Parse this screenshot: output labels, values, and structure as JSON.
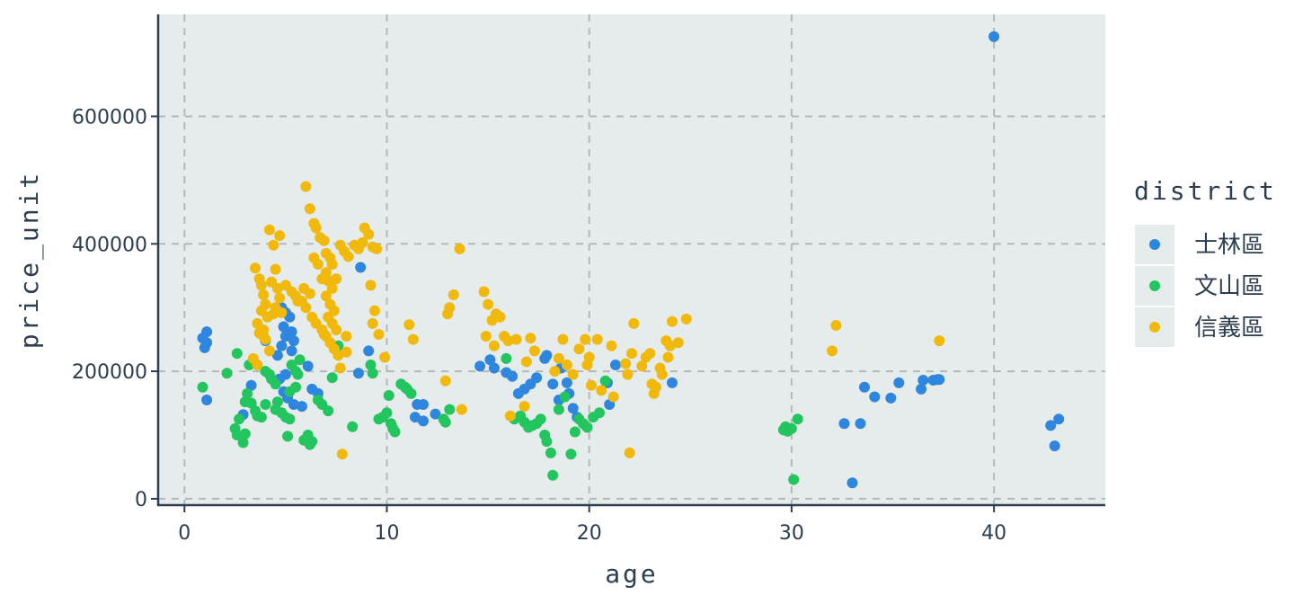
{
  "chart_data": {
    "type": "scatter",
    "xlabel": "age",
    "ylabel": "price_unit",
    "xlim": [
      -1.3,
      45.5
    ],
    "ylim": [
      -10000,
      760000
    ],
    "x_ticks": [
      0,
      10,
      20,
      30,
      40
    ],
    "y_ticks": [
      0,
      200000,
      400000,
      600000
    ],
    "grid": true,
    "background": "#e6ebeb",
    "legend": {
      "title": "district",
      "position": "right"
    },
    "series": [
      {
        "name": "士林區",
        "color": "#2e86de",
        "points": [
          [
            0.9,
            252000
          ],
          [
            1.1,
            262000
          ],
          [
            1.1,
            245000
          ],
          [
            1.0,
            237000
          ],
          [
            1.1,
            155000
          ],
          [
            2.9,
            132000
          ],
          [
            3.3,
            178000
          ],
          [
            4.0,
            248000
          ],
          [
            4.8,
            300000
          ],
          [
            5.0,
            292000
          ],
          [
            5.2,
            285000
          ],
          [
            4.9,
            270000
          ],
          [
            5.3,
            262000
          ],
          [
            5.0,
            255000
          ],
          [
            5.4,
            248000
          ],
          [
            4.8,
            240000
          ],
          [
            5.3,
            232000
          ],
          [
            4.6,
            225000
          ],
          [
            5.0,
            195000
          ],
          [
            4.7,
            188000
          ],
          [
            4.9,
            168000
          ],
          [
            5.1,
            158000
          ],
          [
            5.4,
            148000
          ],
          [
            5.8,
            145000
          ],
          [
            6.1,
            208000
          ],
          [
            6.3,
            172000
          ],
          [
            6.6,
            165000
          ],
          [
            8.7,
            363000
          ],
          [
            8.6,
            197000
          ],
          [
            9.1,
            232000
          ],
          [
            11.5,
            148000
          ],
          [
            11.8,
            148000
          ],
          [
            11.4,
            128000
          ],
          [
            11.8,
            122000
          ],
          [
            12.4,
            133000
          ],
          [
            14.6,
            208000
          ],
          [
            15.1,
            218000
          ],
          [
            15.3,
            205000
          ],
          [
            15.9,
            198000
          ],
          [
            16.2,
            192000
          ],
          [
            16.5,
            165000
          ],
          [
            16.8,
            172000
          ],
          [
            17.1,
            180000
          ],
          [
            17.4,
            190000
          ],
          [
            17.8,
            220000
          ],
          [
            17.9,
            225000
          ],
          [
            18.2,
            180000
          ],
          [
            18.6,
            205000
          ],
          [
            18.9,
            182000
          ],
          [
            19.0,
            165000
          ],
          [
            18.5,
            155000
          ],
          [
            19.2,
            142000
          ],
          [
            19.4,
            128000
          ],
          [
            20.9,
            182000
          ],
          [
            21.0,
            148000
          ],
          [
            21.3,
            210000
          ],
          [
            24.1,
            182000
          ],
          [
            32.6,
            118000
          ],
          [
            33.0,
            25000
          ],
          [
            33.4,
            118000
          ],
          [
            33.6,
            175000
          ],
          [
            34.1,
            160000
          ],
          [
            34.9,
            158000
          ],
          [
            35.3,
            182000
          ],
          [
            36.4,
            172000
          ],
          [
            36.5,
            186000
          ],
          [
            37.0,
            186000
          ],
          [
            37.2,
            187000
          ],
          [
            37.3,
            187000
          ],
          [
            40.0,
            725000
          ],
          [
            42.8,
            115000
          ],
          [
            43.0,
            83000
          ],
          [
            43.2,
            125000
          ]
        ]
      },
      {
        "name": "文山區",
        "color": "#22c55e",
        "points": [
          [
            0.9,
            175000
          ],
          [
            2.1,
            197000
          ],
          [
            2.6,
            228000
          ],
          [
            2.7,
            125000
          ],
          [
            2.5,
            110000
          ],
          [
            2.6,
            100000
          ],
          [
            2.9,
            88000
          ],
          [
            3.0,
            102000
          ],
          [
            3.2,
            210000
          ],
          [
            3.4,
            215000
          ],
          [
            3.1,
            165000
          ],
          [
            3.0,
            152000
          ],
          [
            3.3,
            150000
          ],
          [
            3.5,
            138000
          ],
          [
            3.6,
            130000
          ],
          [
            3.8,
            128000
          ],
          [
            4.0,
            200000
          ],
          [
            4.2,
            195000
          ],
          [
            4.3,
            188000
          ],
          [
            4.5,
            180000
          ],
          [
            4.0,
            148000
          ],
          [
            4.6,
            152000
          ],
          [
            4.5,
            140000
          ],
          [
            4.8,
            135000
          ],
          [
            5.0,
            128000
          ],
          [
            5.2,
            125000
          ],
          [
            5.3,
            210000
          ],
          [
            5.5,
            200000
          ],
          [
            5.6,
            195000
          ],
          [
            5.5,
            175000
          ],
          [
            5.2,
            168000
          ],
          [
            5.1,
            98000
          ],
          [
            5.7,
            218000
          ],
          [
            5.9,
            92000
          ],
          [
            6.1,
            100000
          ],
          [
            6.2,
            85000
          ],
          [
            6.3,
            90000
          ],
          [
            6.6,
            155000
          ],
          [
            6.8,
            148000
          ],
          [
            7.1,
            138000
          ],
          [
            7.3,
            190000
          ],
          [
            7.6,
            240000
          ],
          [
            8.3,
            113000
          ],
          [
            9.2,
            210000
          ],
          [
            9.3,
            197000
          ],
          [
            9.6,
            125000
          ],
          [
            9.8,
            128000
          ],
          [
            10.0,
            135000
          ],
          [
            10.1,
            162000
          ],
          [
            10.2,
            118000
          ],
          [
            10.3,
            110000
          ],
          [
            10.4,
            105000
          ],
          [
            10.7,
            180000
          ],
          [
            10.9,
            175000
          ],
          [
            11.0,
            172000
          ],
          [
            11.2,
            165000
          ],
          [
            12.8,
            125000
          ],
          [
            12.9,
            120000
          ],
          [
            13.1,
            140000
          ],
          [
            15.9,
            220000
          ],
          [
            16.3,
            125000
          ],
          [
            16.6,
            130000
          ],
          [
            16.8,
            120000
          ],
          [
            17.0,
            112000
          ],
          [
            17.2,
            115000
          ],
          [
            17.4,
            118000
          ],
          [
            17.6,
            125000
          ],
          [
            17.8,
            100000
          ],
          [
            17.9,
            90000
          ],
          [
            18.1,
            72000
          ],
          [
            18.2,
            37000
          ],
          [
            18.5,
            140000
          ],
          [
            18.8,
            160000
          ],
          [
            19.1,
            70000
          ],
          [
            19.3,
            105000
          ],
          [
            19.5,
            125000
          ],
          [
            19.7,
            118000
          ],
          [
            19.9,
            112000
          ],
          [
            20.2,
            128000
          ],
          [
            20.5,
            135000
          ],
          [
            20.8,
            185000
          ],
          [
            29.6,
            108000
          ],
          [
            29.7,
            113000
          ],
          [
            29.8,
            106000
          ],
          [
            30.0,
            110000
          ],
          [
            30.1,
            30000
          ],
          [
            30.3,
            125000
          ]
        ]
      },
      {
        "name": "信義區",
        "color": "#f0b90b",
        "points": [
          [
            3.5,
            362000
          ],
          [
            3.7,
            345000
          ],
          [
            3.9,
            320000
          ],
          [
            4.0,
            305000
          ],
          [
            3.8,
            295000
          ],
          [
            4.1,
            285000
          ],
          [
            3.6,
            275000
          ],
          [
            3.9,
            265000
          ],
          [
            4.2,
            422000
          ],
          [
            4.4,
            398000
          ],
          [
            4.5,
            360000
          ],
          [
            4.3,
            340000
          ],
          [
            4.6,
            330000
          ],
          [
            4.7,
            315000
          ],
          [
            4.5,
            300000
          ],
          [
            4.8,
            292000
          ],
          [
            3.7,
            260000
          ],
          [
            3.9,
            255000
          ],
          [
            4.0,
            250000
          ],
          [
            4.2,
            232000
          ],
          [
            3.4,
            220000
          ],
          [
            3.6,
            210000
          ],
          [
            4.7,
            413000
          ],
          [
            5.0,
            335000
          ],
          [
            5.3,
            325000
          ],
          [
            5.5,
            318000
          ],
          [
            5.6,
            310000
          ],
          [
            5.8,
            310000
          ],
          [
            6.0,
            490000
          ],
          [
            6.2,
            455000
          ],
          [
            6.4,
            432000
          ],
          [
            6.5,
            425000
          ],
          [
            6.7,
            410000
          ],
          [
            6.9,
            405000
          ],
          [
            6.4,
            378000
          ],
          [
            6.6,
            368000
          ],
          [
            6.2,
            322000
          ],
          [
            6.0,
            300000
          ],
          [
            6.3,
            285000
          ],
          [
            6.5,
            275000
          ],
          [
            6.8,
            265000
          ],
          [
            6.9,
            258000
          ],
          [
            7.0,
            385000
          ],
          [
            7.2,
            378000
          ],
          [
            7.3,
            368000
          ],
          [
            7.0,
            355000
          ],
          [
            7.1,
            342000
          ],
          [
            7.3,
            330000
          ],
          [
            7.0,
            318000
          ],
          [
            7.2,
            305000
          ],
          [
            7.4,
            295000
          ],
          [
            7.1,
            285000
          ],
          [
            7.3,
            275000
          ],
          [
            7.5,
            265000
          ],
          [
            7.0,
            255000
          ],
          [
            7.2,
            245000
          ],
          [
            7.4,
            235000
          ],
          [
            7.6,
            225000
          ],
          [
            7.7,
            398000
          ],
          [
            7.9,
            388000
          ],
          [
            8.1,
            380000
          ],
          [
            8.4,
            398000
          ],
          [
            8.6,
            392000
          ],
          [
            8.8,
            402000
          ],
          [
            8.9,
            425000
          ],
          [
            9.1,
            415000
          ],
          [
            9.3,
            395000
          ],
          [
            9.5,
            392000
          ],
          [
            9.2,
            335000
          ],
          [
            9.4,
            295000
          ],
          [
            9.3,
            275000
          ],
          [
            9.6,
            258000
          ],
          [
            9.9,
            222000
          ],
          [
            7.8,
            70000
          ],
          [
            8.0,
            255000
          ],
          [
            8.0,
            230000
          ],
          [
            7.7,
            205000
          ],
          [
            11.1,
            273000
          ],
          [
            11.3,
            250000
          ],
          [
            13.0,
            290000
          ],
          [
            13.1,
            300000
          ],
          [
            13.3,
            320000
          ],
          [
            13.6,
            392000
          ],
          [
            13.7,
            140000
          ],
          [
            12.9,
            185000
          ],
          [
            14.8,
            325000
          ],
          [
            15.0,
            305000
          ],
          [
            15.2,
            280000
          ],
          [
            15.4,
            290000
          ],
          [
            15.6,
            285000
          ],
          [
            14.9,
            255000
          ],
          [
            15.3,
            240000
          ],
          [
            15.8,
            255000
          ],
          [
            16.0,
            248000
          ],
          [
            16.4,
            250000
          ],
          [
            16.1,
            130000
          ],
          [
            16.9,
            215000
          ],
          [
            17.1,
            252000
          ],
          [
            17.3,
            232000
          ],
          [
            16.8,
            145000
          ],
          [
            18.3,
            200000
          ],
          [
            18.5,
            220000
          ],
          [
            18.7,
            250000
          ],
          [
            18.9,
            210000
          ],
          [
            19.2,
            195000
          ],
          [
            19.5,
            235000
          ],
          [
            19.8,
            250000
          ],
          [
            20.0,
            222000
          ],
          [
            19.9,
            210000
          ],
          [
            20.1,
            178000
          ],
          [
            20.4,
            250000
          ],
          [
            20.6,
            170000
          ],
          [
            21.1,
            240000
          ],
          [
            21.2,
            160000
          ],
          [
            21.8,
            212000
          ],
          [
            21.9,
            195000
          ],
          [
            22.1,
            228000
          ],
          [
            22.0,
            72000
          ],
          [
            22.2,
            275000
          ],
          [
            22.6,
            208000
          ],
          [
            22.8,
            222000
          ],
          [
            23.0,
            228000
          ],
          [
            23.1,
            180000
          ],
          [
            23.2,
            165000
          ],
          [
            23.3,
            175000
          ],
          [
            23.5,
            205000
          ],
          [
            23.6,
            195000
          ],
          [
            23.8,
            248000
          ],
          [
            23.9,
            222000
          ],
          [
            24.0,
            240000
          ],
          [
            24.1,
            278000
          ],
          [
            24.4,
            245000
          ],
          [
            24.8,
            282000
          ],
          [
            32.0,
            232000
          ],
          [
            32.2,
            272000
          ],
          [
            37.3,
            248000
          ],
          [
            4.4,
            290000
          ],
          [
            3.8,
            335000
          ],
          [
            6.8,
            345000
          ],
          [
            7.5,
            345000
          ],
          [
            5.9,
            330000
          ]
        ]
      }
    ]
  }
}
